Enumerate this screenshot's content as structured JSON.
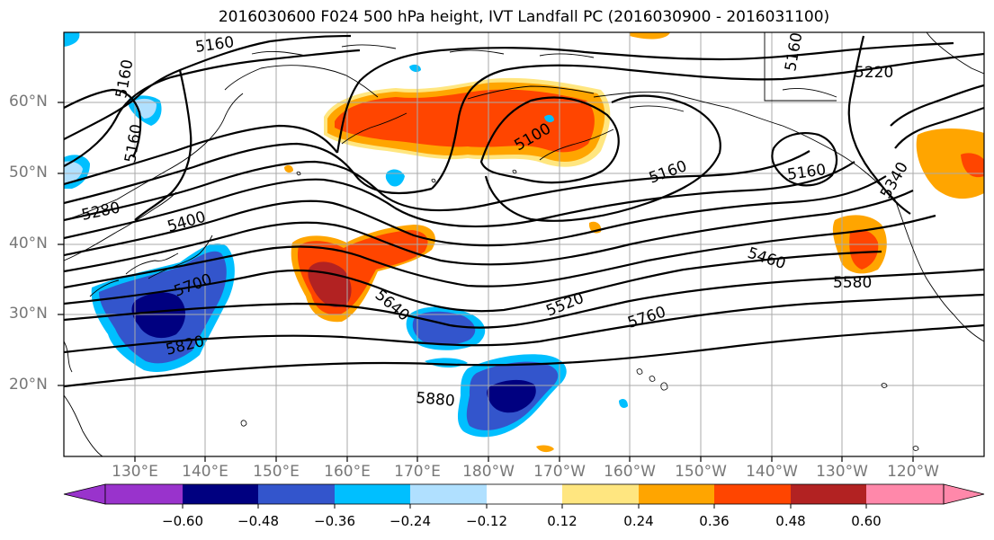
{
  "title": "2016030600 F024 500 hPa height, IVT Landfall PC (2016030900 - 2016031100)",
  "lat_labels": [
    "60°N",
    "50°N",
    "40°N",
    "30°N",
    "20°N"
  ],
  "lon_labels": [
    "130°E",
    "140°E",
    "150°E",
    "160°E",
    "170°E",
    "180°W",
    "170°W",
    "160°W",
    "150°W",
    "140°W",
    "130°W",
    "120°W"
  ],
  "contour_labels": [
    "5160",
    "5160",
    "5220",
    "5160",
    "5280",
    "5400",
    "5100",
    "5160",
    "5160",
    "5340",
    "5460",
    "5580",
    "5700",
    "5640",
    "5520",
    "5760",
    "5820",
    "5880",
    "5160"
  ],
  "colorbar": {
    "levels": [
      "−0.60",
      "−0.48",
      "−0.36",
      "−0.24",
      "−0.12",
      "0.12",
      "0.24",
      "0.36",
      "0.48",
      "0.60"
    ],
    "colors": [
      "#9933cc",
      "#000080",
      "#3355cc",
      "#00bfff",
      "#b0e0ff",
      "#ffffff",
      "#ffe680",
      "#ffa500",
      "#ff4500",
      "#b22222",
      "#ff88aa"
    ]
  },
  "map_colors": {
    "land_outline": "#000000",
    "grid": "#aaaaaa",
    "contour": "#000000"
  }
}
